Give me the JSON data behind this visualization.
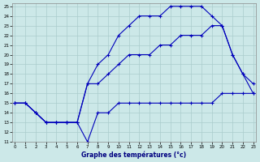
{
  "title": "Graphe des températures (°c)",
  "bg_color": "#cce8e8",
  "line_color": "#0000bb",
  "grid_color": "#aacccc",
  "xlim": [
    -0.3,
    23.3
  ],
  "ylim": [
    11,
    25.3
  ],
  "xticks": [
    0,
    1,
    2,
    3,
    4,
    5,
    6,
    7,
    8,
    9,
    10,
    11,
    12,
    13,
    14,
    15,
    16,
    17,
    18,
    19,
    20,
    21,
    22,
    23
  ],
  "yticks": [
    11,
    12,
    13,
    14,
    15,
    16,
    17,
    18,
    19,
    20,
    21,
    22,
    23,
    24,
    25
  ],
  "line1": {
    "x": [
      0,
      1,
      2,
      3,
      4,
      5,
      6,
      7,
      8,
      9,
      10,
      11,
      12,
      13,
      14,
      15,
      16,
      17,
      18,
      19,
      20,
      21,
      22,
      23
    ],
    "y": [
      15,
      15,
      14,
      13,
      13,
      13,
      13,
      11,
      14,
      14,
      15,
      15,
      15,
      15,
      15,
      15,
      15,
      15,
      15,
      15,
      16,
      16,
      16,
      16
    ]
  },
  "line2": {
    "x": [
      0,
      1,
      2,
      3,
      4,
      5,
      6,
      7,
      8,
      9,
      10,
      11,
      12,
      13,
      14,
      15,
      16,
      17,
      18,
      19,
      20,
      21,
      22,
      23
    ],
    "y": [
      15,
      15,
      14,
      13,
      13,
      13,
      13,
      17,
      17,
      18,
      19,
      20,
      20,
      20,
      21,
      21,
      22,
      22,
      22,
      23,
      23,
      20,
      18,
      17
    ]
  },
  "line3": {
    "x": [
      0,
      1,
      2,
      3,
      4,
      5,
      6,
      7,
      8,
      9,
      10,
      11,
      12,
      13,
      14,
      15,
      16,
      17,
      18,
      19,
      20,
      21,
      22,
      23
    ],
    "y": [
      15,
      15,
      14,
      13,
      13,
      13,
      13,
      17,
      19,
      20,
      22,
      23,
      24,
      24,
      24,
      25,
      25,
      25,
      25,
      24,
      23,
      20,
      18,
      16
    ]
  }
}
